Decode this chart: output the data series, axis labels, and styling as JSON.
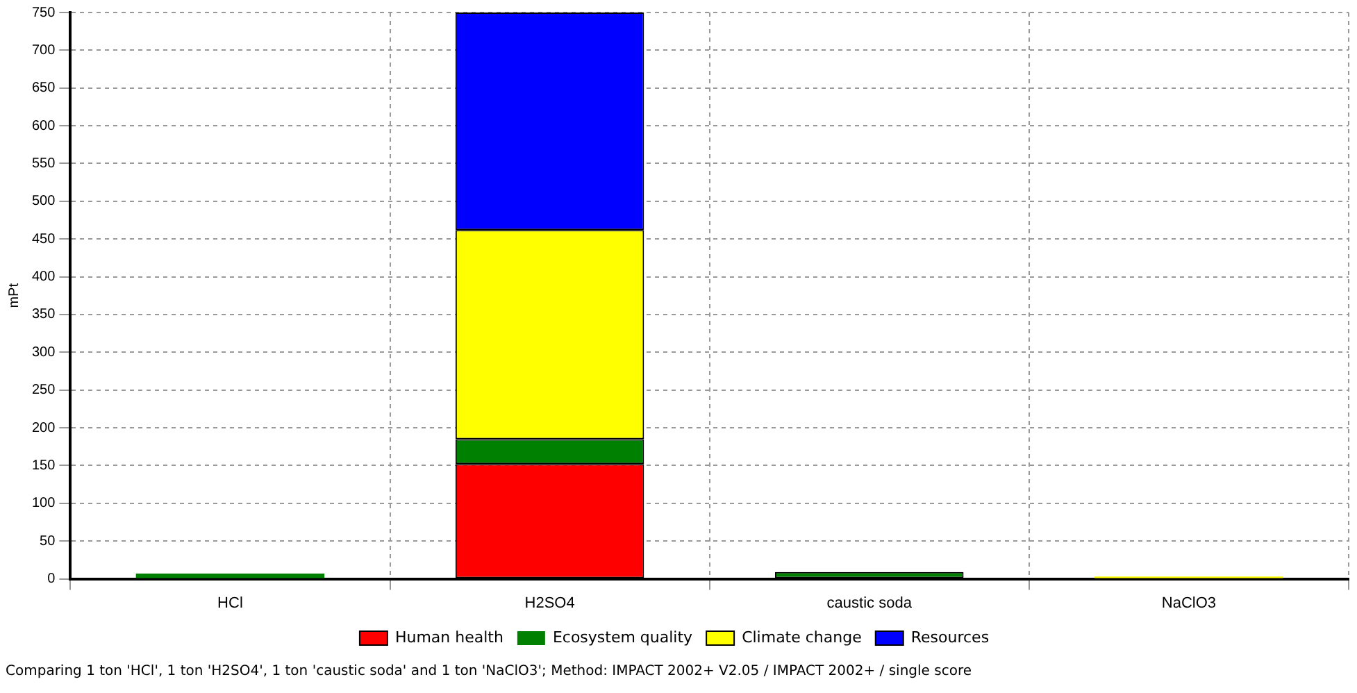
{
  "chart_data": {
    "type": "bar",
    "stacked": true,
    "ylabel": "mPt",
    "categories": [
      "HCl",
      "H2SO4",
      "caustic soda",
      "NaClO3"
    ],
    "series": [
      {
        "name": "Human health",
        "color": "#ff0000",
        "values": [
          null,
          152,
          null,
          null
        ]
      },
      {
        "name": "Ecosystem quality",
        "color": "#008000",
        "values": [
          7,
          33,
          9,
          null
        ]
      },
      {
        "name": "Climate change",
        "color": "#ffff00",
        "values": [
          null,
          277,
          null,
          3
        ]
      },
      {
        "name": "Resources",
        "color": "#0000ff",
        "values": [
          null,
          288,
          null,
          null
        ]
      }
    ],
    "ylim": [
      0,
      750
    ],
    "yticks": [
      0,
      50,
      100,
      150,
      200,
      250,
      300,
      350,
      400,
      450,
      500,
      550,
      600,
      650,
      700,
      750
    ],
    "grid": true,
    "legend": "bottom",
    "annotations": [
      "Comparing 1 ton 'HCl', 1 ton 'H2SO4', 1 ton 'caustic soda' and 1 ton 'NaClO3'; Method: IMPACT 2002+ V2.05 / IMPACT 2002+ / single score"
    ]
  }
}
